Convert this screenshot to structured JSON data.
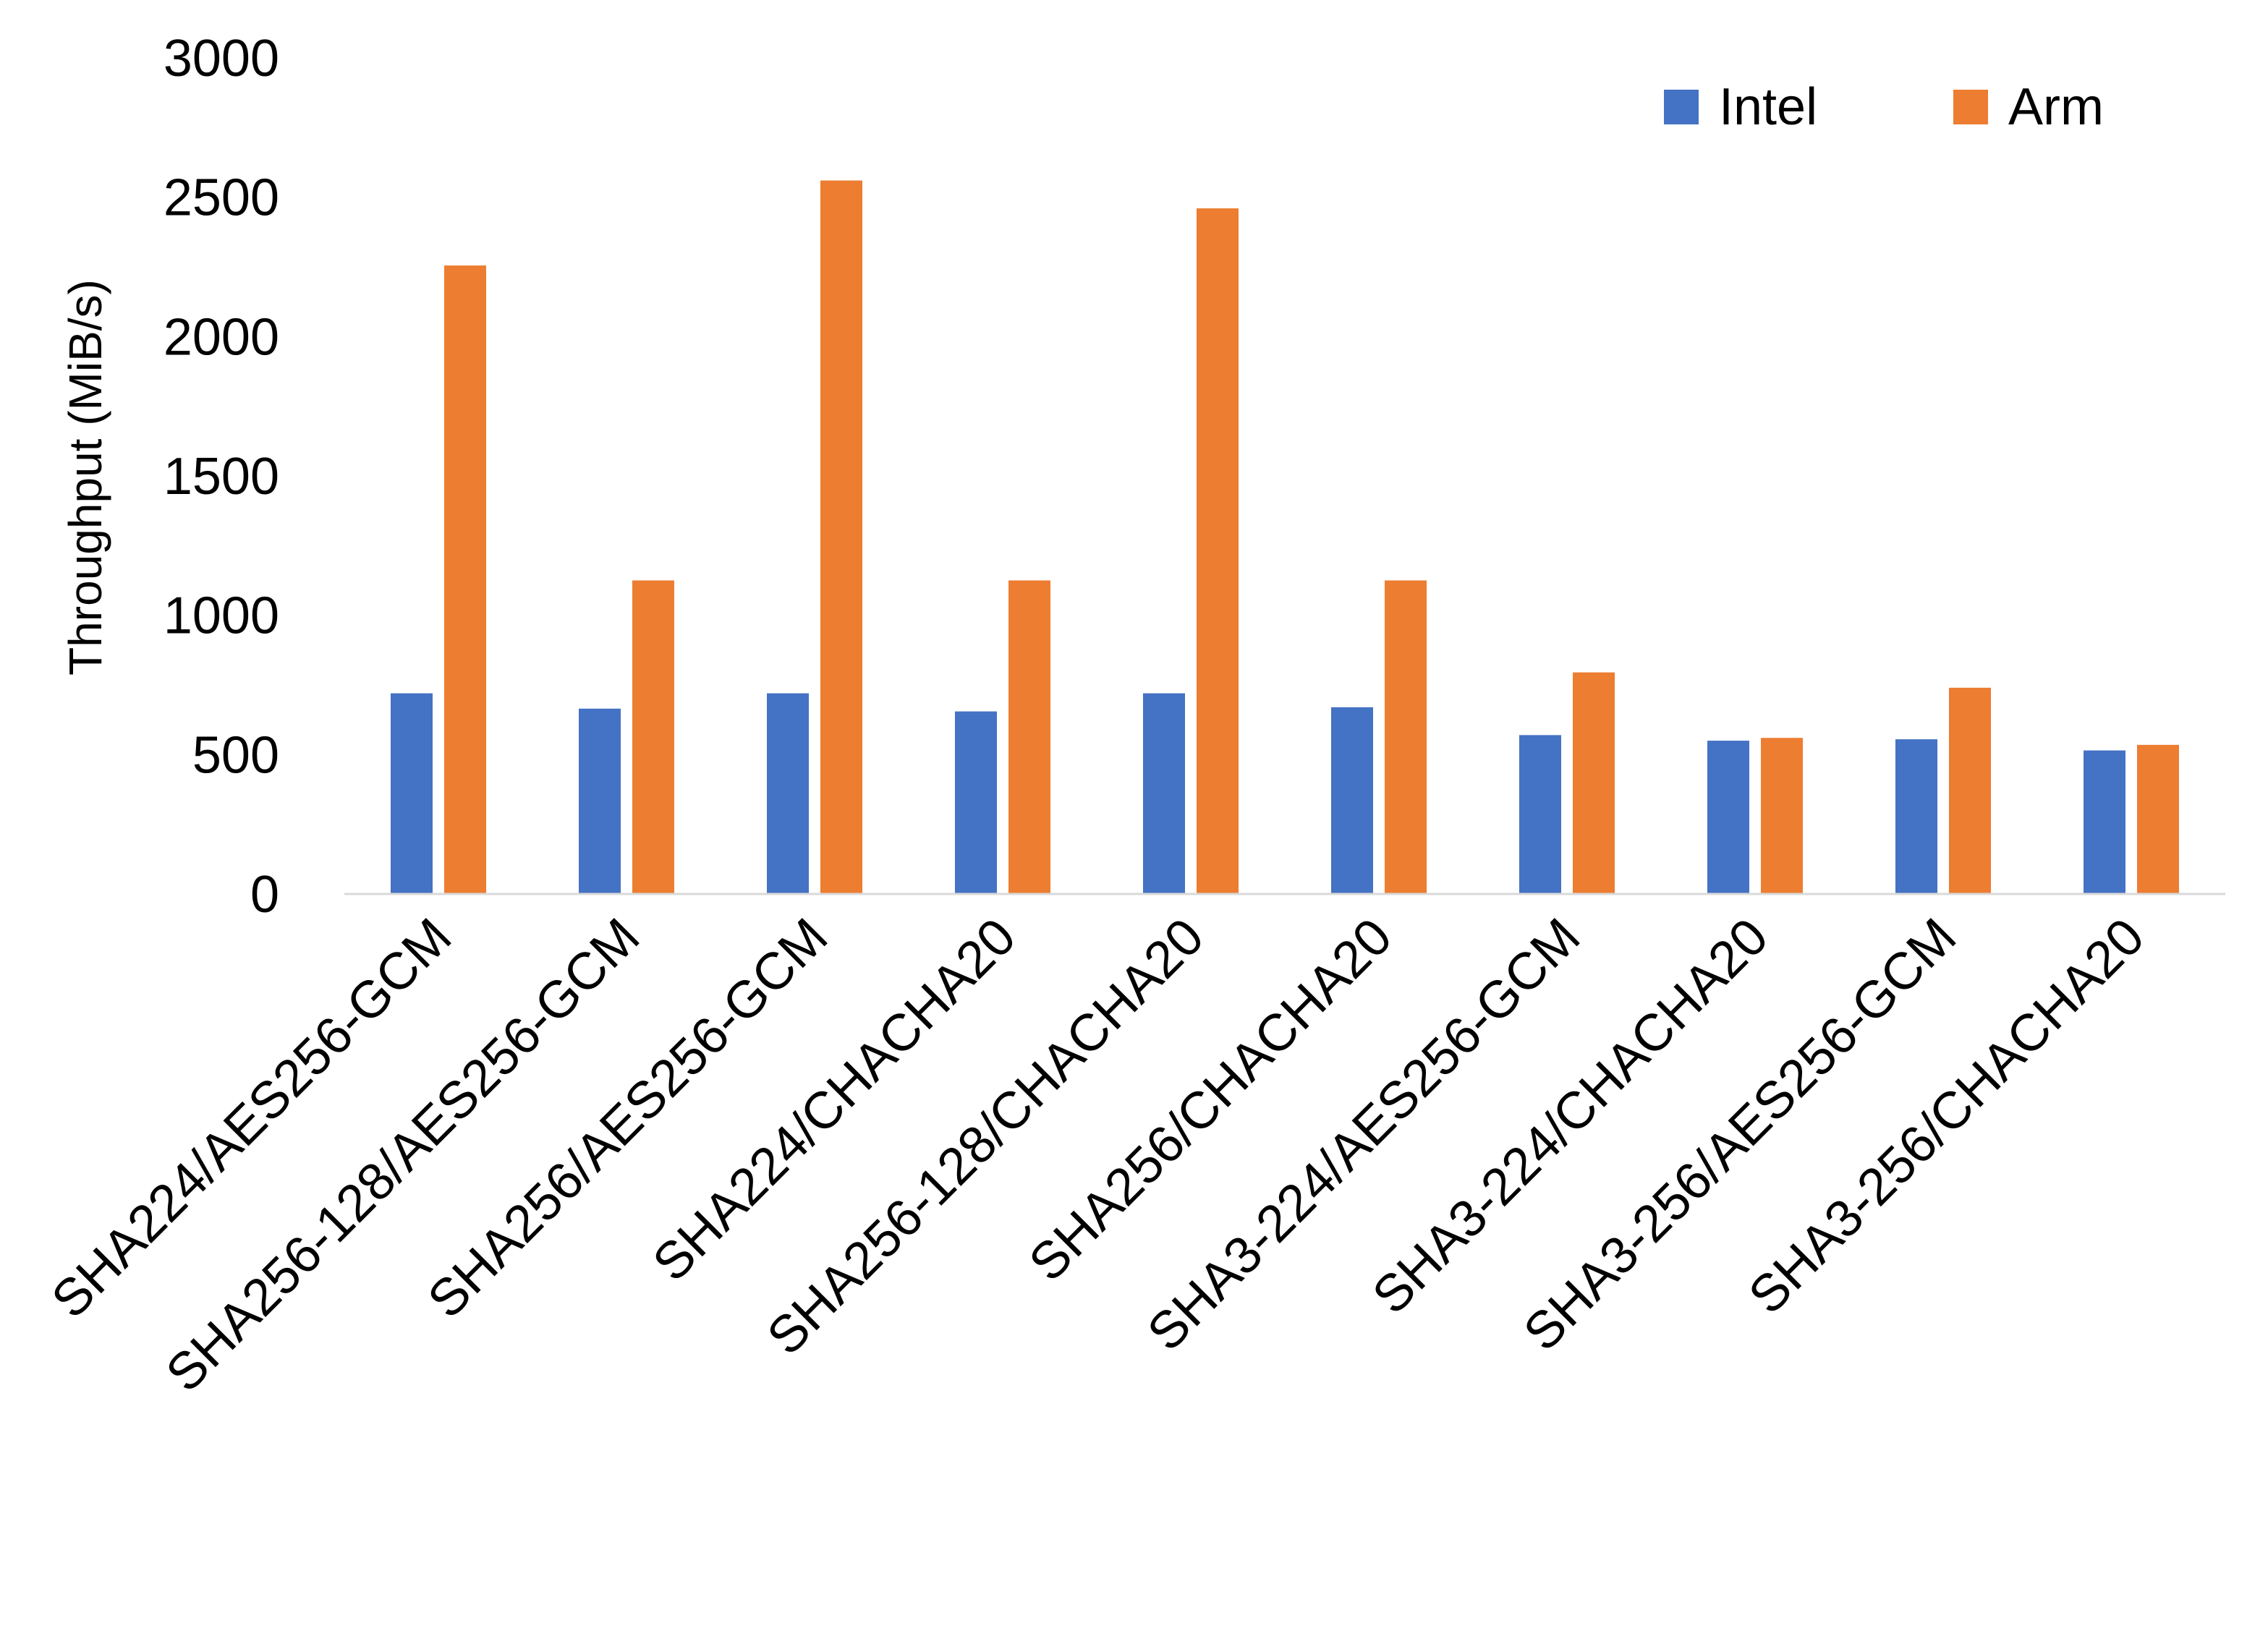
{
  "chart_data": {
    "type": "bar",
    "title": "",
    "xlabel": "",
    "ylabel": "Throughput (MiB/s)",
    "ylim": [
      0,
      3000
    ],
    "yticks": [
      "0",
      "500",
      "1000",
      "1500",
      "2000",
      "2500",
      "3000"
    ],
    "grid": false,
    "legend_position": "top-right",
    "categories": [
      "SHA224/AES256-GCM",
      "SHA256-128/AES256-GCM",
      "SHA256/AES256-GCM",
      "SHA224/CHACHA20",
      "SHA256-128/CHACHA20",
      "SHA256/CHACHA20",
      "SHA3-224/AES256-GCM",
      "SHA3-224/CHACHA20",
      "SHA3-256/AES256-GCM",
      "SHA3-256/CHACHA20"
    ],
    "series": [
      {
        "name": "Intel",
        "color": "#4472C4",
        "values": [
          720,
          665,
          720,
          655,
          720,
          670,
          570,
          550,
          555,
          515
        ]
      },
      {
        "name": "Arm",
        "color": "#ED7D31",
        "values": [
          2255,
          1125,
          2560,
          1125,
          2460,
          1125,
          795,
          560,
          740,
          535
        ]
      }
    ]
  }
}
